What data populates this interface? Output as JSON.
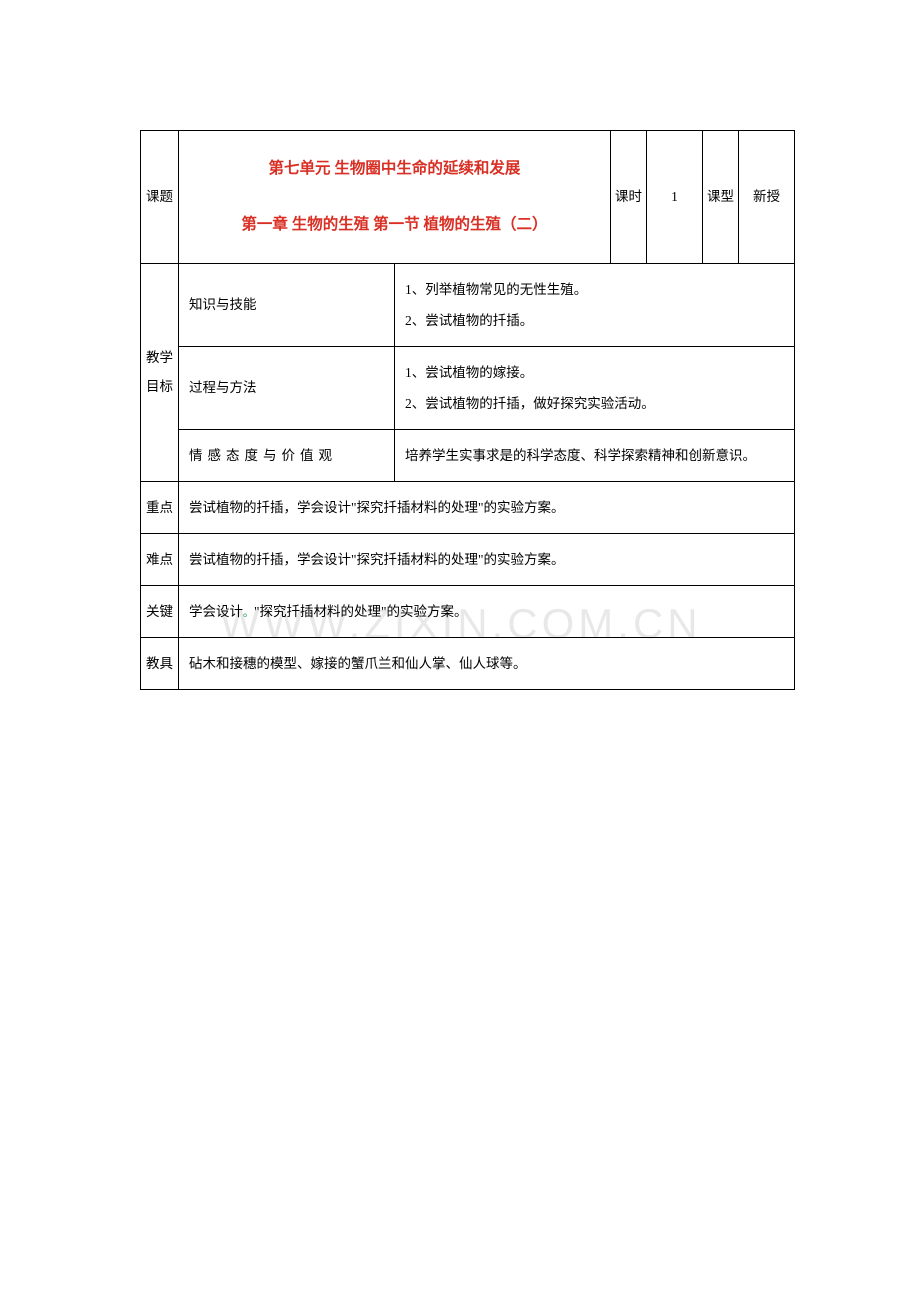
{
  "header": {
    "topic_label": "课题",
    "unit_title": "第七单元   生物圈中生命的延续和发展",
    "chapter_title": "第一章 生物的生殖   第一节 植物的生殖（二）",
    "period_label": "课时",
    "period_value": "1",
    "type_label": "课型",
    "type_value": "新授"
  },
  "objectives": {
    "label": "教学目标",
    "rows": [
      {
        "category": "知识与技能",
        "content": "1、列举植物常见的无性生殖。\n2、尝试植物的扦插。"
      },
      {
        "category": "过程与方法",
        "content": "1、尝试植物的嫁接。\n2、尝试植物的扦插，做好探究实验活动。"
      },
      {
        "category": "情感态度与价值观",
        "content": "培养学生实事求是的科学态度、科学探索精神和创新意识。"
      }
    ]
  },
  "keypoint": {
    "label": "重点",
    "content": "尝试植物的扦插，学会设计\"探究扦插材料的处理\"的实验方案。"
  },
  "difficulty": {
    "label": "难点",
    "content": "尝试植物的扦插，学会设计\"探究扦插材料的处理\"的实验方案。"
  },
  "key": {
    "label": "关键",
    "content_before": "学会设计",
    "content_after": "\"探究扦插材料的处理\"的实验方案。"
  },
  "tools": {
    "label": "教具",
    "content": "砧木和接穗的模型、嫁接的蟹爪兰和仙人掌、仙人球等。"
  },
  "watermark": "WWW.ZIXIN.COM.CN",
  "colors": {
    "title_color": "#d93025",
    "border_color": "#000000",
    "text_color": "#000000",
    "watermark_color": "rgba(0,0,0,0.09)",
    "bracket_color": "#1a9d4a"
  }
}
